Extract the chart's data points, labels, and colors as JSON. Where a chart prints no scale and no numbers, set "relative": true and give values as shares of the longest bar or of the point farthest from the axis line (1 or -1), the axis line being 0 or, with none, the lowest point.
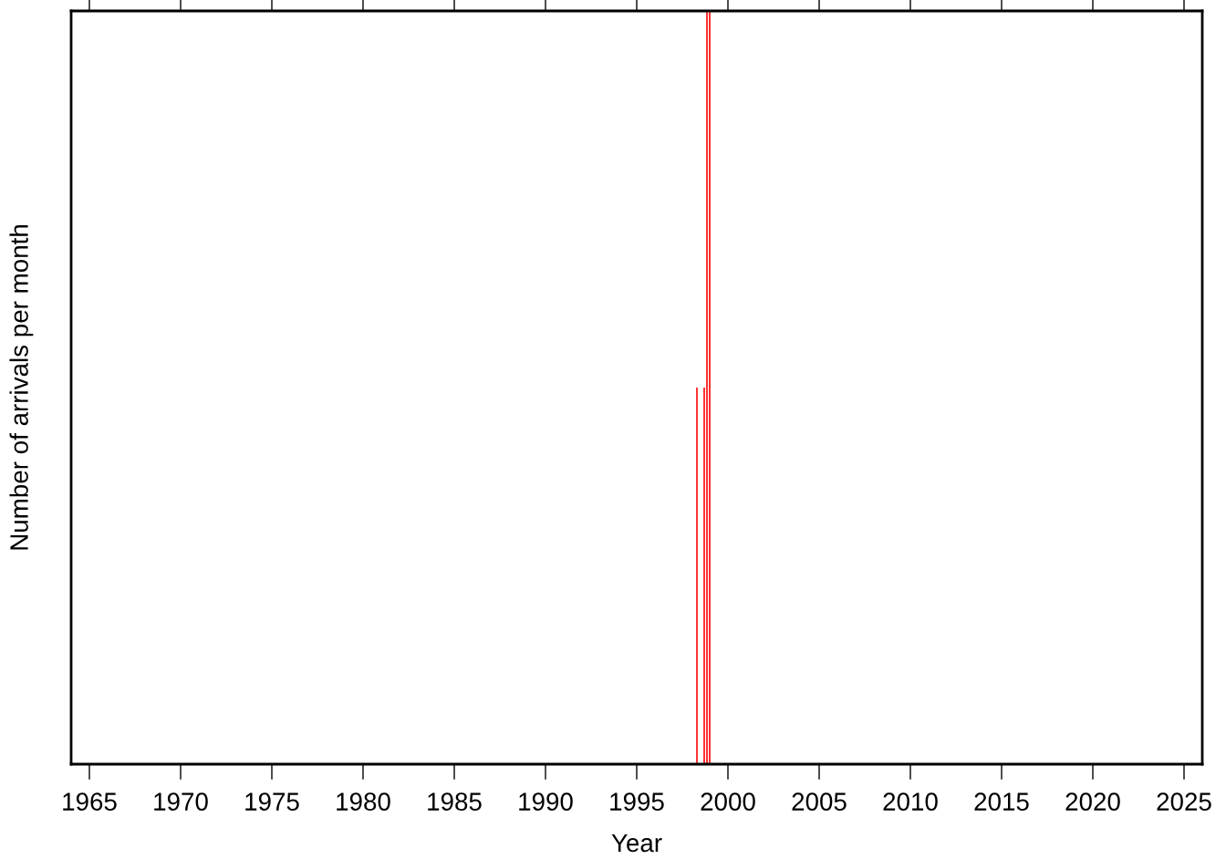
{
  "chart_data": {
    "type": "bar",
    "xlabel": "Year",
    "ylabel": "Number of arrivals per month",
    "relative": true,
    "x": [
      1998.3,
      1998.7,
      1998.85,
      1999.0
    ],
    "values": [
      0.5,
      0.5,
      1,
      1
    ],
    "color": "#ff0000",
    "xlim": [
      1964,
      2026
    ],
    "xticks": [
      1965,
      1970,
      1975,
      1980,
      1985,
      1990,
      1995,
      2000,
      2005,
      2010,
      2015,
      2020,
      2025
    ],
    "grid": false
  }
}
